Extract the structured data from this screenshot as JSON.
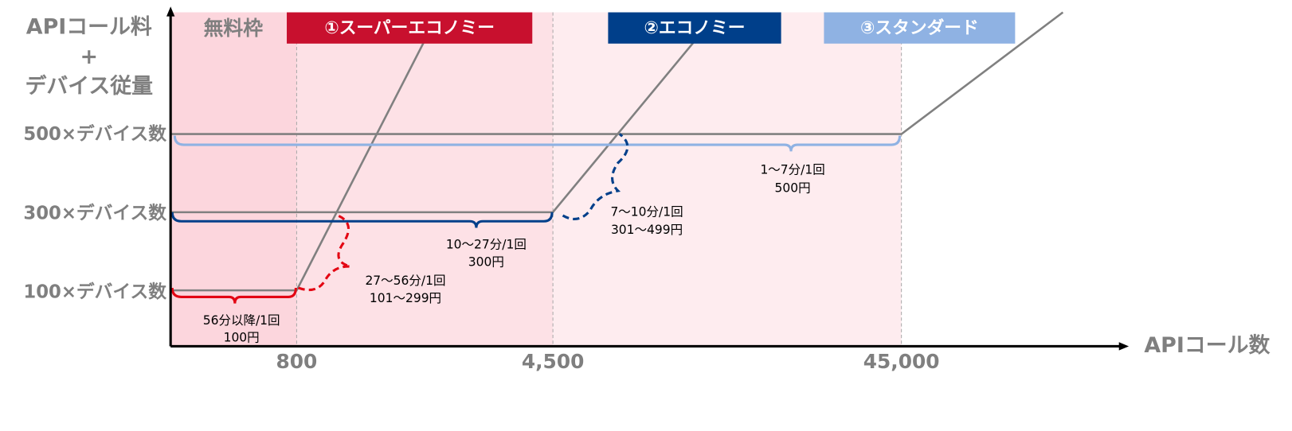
{
  "y_axis": {
    "title_lines": [
      "APIコール料",
      "+",
      "デバイス従量"
    ],
    "labels": [
      "500×デバイス数",
      "300×デバイス数",
      "100×デバイス数"
    ]
  },
  "x_axis": {
    "title": "APIコール数",
    "labels": [
      "800",
      "4,500",
      "45,000"
    ]
  },
  "free_tier": "無料枠",
  "plans": [
    "①スーパーエコノミー",
    "②エコノミー",
    "③スタンダード"
  ],
  "annotations": [
    [
      "56分以降/1回",
      "100円"
    ],
    [
      "27〜56分/1回",
      "101〜299円"
    ],
    [
      "10〜27分/1回",
      "300円"
    ],
    [
      "7〜10分/1回",
      "301〜499円"
    ],
    [
      "1〜7分/1回",
      "500円"
    ]
  ]
}
